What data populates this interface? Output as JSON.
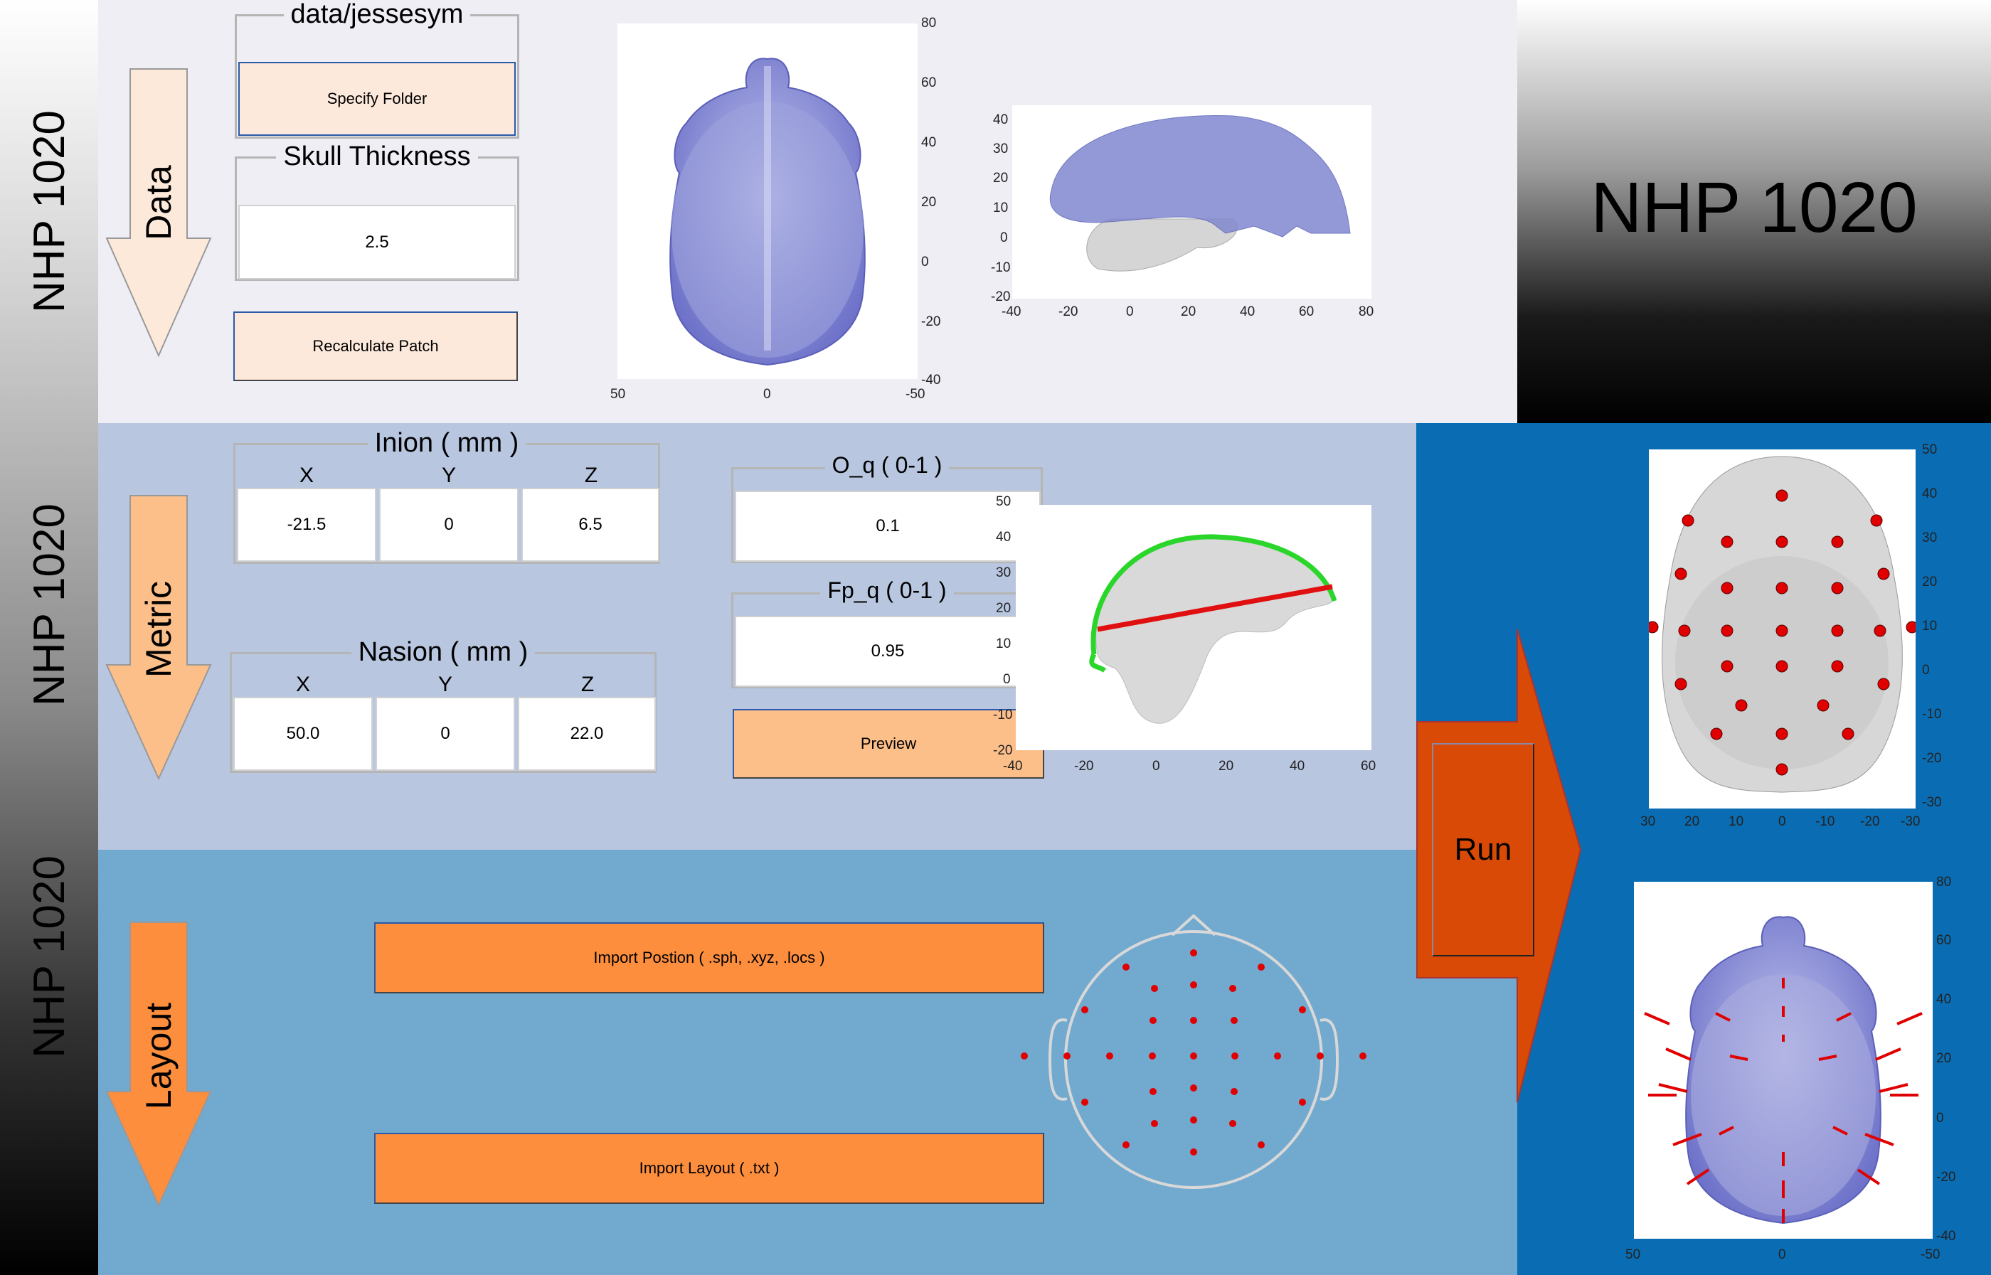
{
  "app": {
    "side_title": "NHP 1020",
    "big_title": "NHP 1020"
  },
  "steps": {
    "data": "Data",
    "metric": "Metric",
    "layout": "Layout"
  },
  "data_panel": {
    "folder_group_title": "data/jessesym",
    "specify_folder_label": "Specify Folder",
    "skull_group_title": "Skull Thickness",
    "skull_thickness_value": "2.5",
    "recalculate_label": "Recalculate Patch"
  },
  "metric_panel": {
    "inion_title": "Inion ( mm )",
    "nasion_title": "Nasion ( mm )",
    "col_x": "X",
    "col_y": "Y",
    "col_z": "Z",
    "inion": {
      "x": "-21.5",
      "y": "0",
      "z": "6.5"
    },
    "nasion": {
      "x": "50.0",
      "y": "0",
      "z": "22.0"
    },
    "oq_title": "O_q ( 0-1 )",
    "oq_value": "0.1",
    "fpq_title": "Fp_q ( 0-1 )",
    "fpq_value": "0.95",
    "preview_label": "Preview"
  },
  "layout_panel": {
    "import_position_label": "Import Postion ( .sph, .xyz, .locs )",
    "import_layout_label": "Import Layout ( .txt )"
  },
  "run_label": "Run",
  "colors": {
    "data_arrow": "#fde9da",
    "metric_arrow": "#fcbf8a",
    "layout_arrow": "#fc8e3e",
    "run_arrow": "#d84a06",
    "electrode": "#e00000",
    "skull": "#8e93d8"
  },
  "plots": {
    "top_view_ticks_y": [
      "80",
      "60",
      "40",
      "20",
      "0",
      "-20",
      "-40"
    ],
    "top_view_ticks_x": [
      "50",
      "0",
      "-50"
    ],
    "side_view_ticks_y": [
      "40",
      "30",
      "20",
      "10",
      "0",
      "-10",
      "-20"
    ],
    "side_view_ticks_x": [
      "-40",
      "-20",
      "0",
      "20",
      "40",
      "60",
      "80"
    ],
    "metric_ticks_y": [
      "50",
      "40",
      "30",
      "20",
      "10",
      "0",
      "-10",
      "-20"
    ],
    "metric_ticks_x": [
      "-40",
      "-20",
      "0",
      "20",
      "40",
      "60"
    ],
    "result_top_ticks_y": [
      "50",
      "40",
      "30",
      "20",
      "10",
      "0",
      "-10",
      "-20",
      "-30"
    ],
    "result_top_ticks_x": [
      "30",
      "20",
      "10",
      "0",
      "-10",
      "-20",
      "-30"
    ],
    "result_bottom_ticks_y": [
      "80",
      "60",
      "40",
      "20",
      "0",
      "-20",
      "-40"
    ],
    "result_bottom_ticks_x": [
      "50",
      "0",
      "-50"
    ]
  }
}
